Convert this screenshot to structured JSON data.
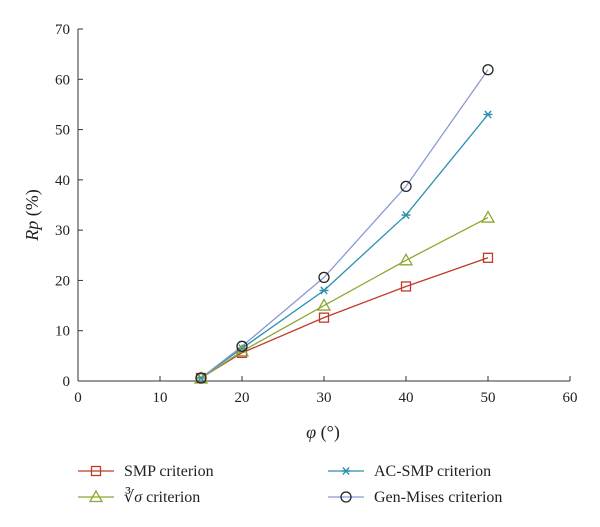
{
  "chart_data": {
    "type": "line",
    "x": [
      15,
      20,
      30,
      40,
      50
    ],
    "xlabel_italic": "φ",
    "xlabel_rest": " (°)",
    "ylabel_italic": "Rp",
    "ylabel_rest": " (%)",
    "xlim": [
      0,
      60
    ],
    "ylim": [
      0,
      70
    ],
    "xticks": [
      0,
      10,
      20,
      30,
      40,
      50,
      60
    ],
    "yticks": [
      0,
      10,
      20,
      30,
      40,
      50,
      60,
      70
    ],
    "grid": false,
    "legend_position": "bottom",
    "series": [
      {
        "name": "SMP criterion",
        "name_radical": "",
        "name_rest": "",
        "color": "#c0392b",
        "marker": "square",
        "values": [
          0.6,
          5.6,
          12.6,
          18.8,
          24.5
        ]
      },
      {
        "name": "AC-SMP criterion",
        "name_radical": "",
        "name_rest": "",
        "color": "#2a8fb0",
        "marker": "asterisk",
        "values": [
          0.6,
          6.5,
          18.0,
          33.0,
          53.0
        ]
      },
      {
        "name": "",
        "name_radical": "∛σ",
        "name_rest": " criterion",
        "color": "#8aa832",
        "marker": "triangle",
        "values": [
          0.5,
          5.9,
          15.0,
          24.0,
          32.5
        ]
      },
      {
        "name": "Gen-Mises criterion",
        "name_radical": "",
        "name_rest": "",
        "color": "#8b9ad6",
        "marker": "circle",
        "values": [
          0.6,
          6.9,
          20.6,
          38.7,
          61.9
        ]
      }
    ]
  }
}
